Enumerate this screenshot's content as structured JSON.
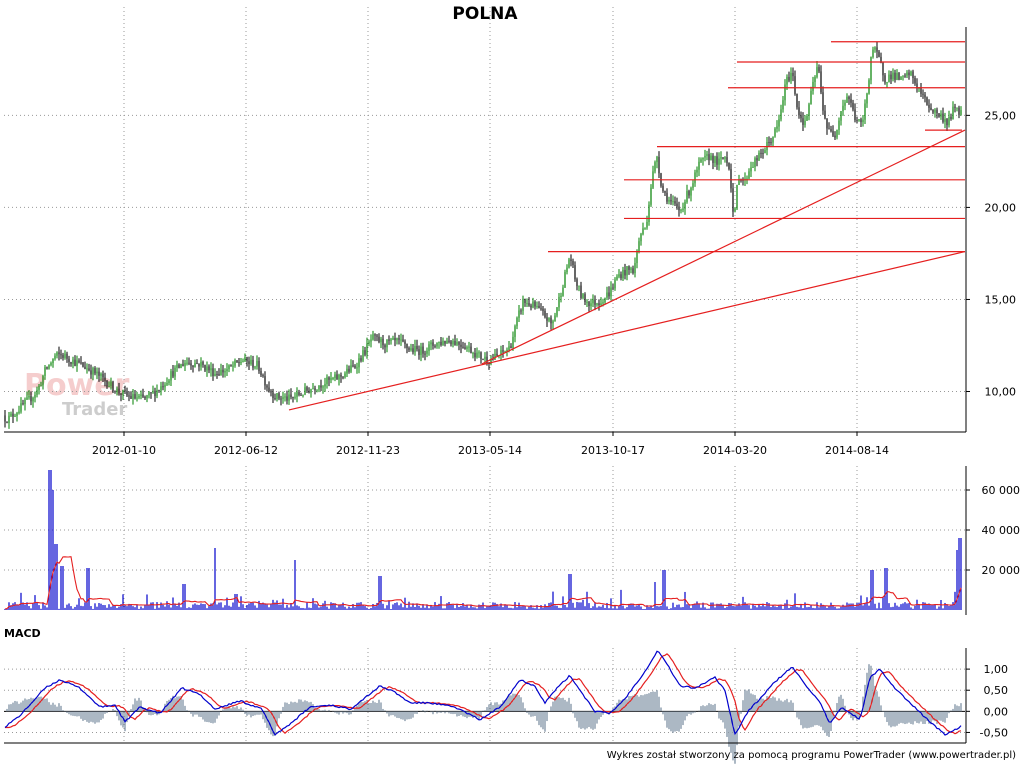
{
  "chart_data": [
    {
      "type": "candlestick",
      "title": "POLNA",
      "x_tick_labels": [
        "2012-01-10",
        "2012-06-12",
        "2012-11-23",
        "2013-05-14",
        "2013-10-17",
        "2014-03-20",
        "2014-08-14"
      ],
      "y_tick_labels": [
        "10,00",
        "15,00",
        "20,00",
        "25,00"
      ],
      "y_ticks": [
        10,
        15,
        20,
        25
      ],
      "ylim": [
        7.8,
        29.8
      ],
      "grid": true,
      "price_path": [
        [
          0,
          8.7
        ],
        [
          8,
          8.5
        ],
        [
          18,
          9.0
        ],
        [
          30,
          9.6
        ],
        [
          38,
          10.1
        ],
        [
          45,
          11.1
        ],
        [
          55,
          11.9
        ],
        [
          62,
          12.0
        ],
        [
          75,
          11.6
        ],
        [
          90,
          11.2
        ],
        [
          105,
          10.6
        ],
        [
          118,
          10.0
        ],
        [
          130,
          9.7
        ],
        [
          145,
          9.6
        ],
        [
          160,
          10.2
        ],
        [
          172,
          11.0
        ],
        [
          185,
          11.6
        ],
        [
          200,
          11.5
        ],
        [
          215,
          11.0
        ],
        [
          228,
          11.2
        ],
        [
          242,
          11.7
        ],
        [
          258,
          11.4
        ],
        [
          268,
          10.2
        ],
        [
          276,
          9.7
        ],
        [
          290,
          9.6
        ],
        [
          305,
          10.0
        ],
        [
          320,
          10.4
        ],
        [
          340,
          10.8
        ],
        [
          355,
          11.4
        ],
        [
          365,
          12.2
        ],
        [
          372,
          12.9
        ],
        [
          385,
          12.6
        ],
        [
          398,
          12.7
        ],
        [
          410,
          12.3
        ],
        [
          422,
          12.2
        ],
        [
          435,
          12.6
        ],
        [
          450,
          12.8
        ],
        [
          465,
          12.5
        ],
        [
          480,
          11.9
        ],
        [
          490,
          11.7
        ],
        [
          500,
          12.0
        ],
        [
          510,
          12.4
        ],
        [
          518,
          14.0
        ],
        [
          523,
          14.9
        ],
        [
          535,
          14.6
        ],
        [
          545,
          14.1
        ],
        [
          552,
          13.6
        ],
        [
          558,
          14.8
        ],
        [
          565,
          16.3
        ],
        [
          570,
          17.4
        ],
        [
          575,
          16.1
        ],
        [
          582,
          15.1
        ],
        [
          590,
          14.8
        ],
        [
          600,
          14.9
        ],
        [
          610,
          15.4
        ],
        [
          618,
          16.3
        ],
        [
          628,
          16.6
        ],
        [
          634,
          16.6
        ],
        [
          640,
          18.5
        ],
        [
          646,
          19.0
        ],
        [
          652,
          21.6
        ],
        [
          657,
          22.8
        ],
        [
          662,
          21.0
        ],
        [
          670,
          20.3
        ],
        [
          680,
          19.8
        ],
        [
          690,
          21.0
        ],
        [
          700,
          22.4
        ],
        [
          710,
          22.8
        ],
        [
          718,
          22.4
        ],
        [
          726,
          22.8
        ],
        [
          730,
          22.0
        ],
        [
          734,
          19.0
        ],
        [
          738,
          21.8
        ],
        [
          745,
          21.4
        ],
        [
          750,
          22.2
        ],
        [
          760,
          22.8
        ],
        [
          770,
          23.6
        ],
        [
          778,
          24.4
        ],
        [
          786,
          26.8
        ],
        [
          792,
          27.4
        ],
        [
          798,
          25.2
        ],
        [
          805,
          24.5
        ],
        [
          812,
          26.4
        ],
        [
          818,
          27.8
        ],
        [
          822,
          25.7
        ],
        [
          828,
          24.1
        ],
        [
          835,
          24.0
        ],
        [
          842,
          25.5
        ],
        [
          848,
          26.1
        ],
        [
          855,
          24.9
        ],
        [
          862,
          24.4
        ],
        [
          868,
          26.6
        ],
        [
          872,
          28.7
        ],
        [
          878,
          28.2
        ],
        [
          885,
          27.0
        ],
        [
          893,
          27.2
        ],
        [
          902,
          26.9
        ],
        [
          910,
          27.3
        ],
        [
          918,
          26.5
        ],
        [
          925,
          25.8
        ],
        [
          932,
          25.3
        ],
        [
          940,
          25.0
        ],
        [
          948,
          24.6
        ],
        [
          955,
          25.5
        ],
        [
          962,
          25.1
        ]
      ],
      "support_resistance_levels": [
        17.6,
        19.4,
        21.5,
        23.3,
        26.5,
        27.9,
        29.0
      ],
      "trendlines": [
        {
          "from": [
            "2012-07",
            9.0
          ],
          "to": [
            "2014-11",
            17.6
          ]
        },
        {
          "from": [
            "2013-05",
            11.5
          ],
          "to": [
            "2014-11",
            24.2
          ]
        }
      ]
    },
    {
      "type": "bar",
      "title": "",
      "y_tick_labels": [
        "20 000",
        "40 000",
        "60 000"
      ],
      "y_ticks": [
        20000,
        40000,
        60000
      ],
      "ylim": [
        0,
        72000
      ],
      "series": [
        {
          "values": "volume bars with a red moving average"
        }
      ]
    },
    {
      "type": "line",
      "title": "MACD",
      "y_tick_labels": [
        "-0,50",
        "0,00",
        "0,50",
        "1,00"
      ],
      "y_ticks": [
        -0.5,
        0,
        0.5,
        1
      ],
      "ylim": [
        -0.75,
        1.5
      ],
      "macd_path": [
        [
          0,
          -0.45
        ],
        [
          20,
          -0.1
        ],
        [
          45,
          0.55
        ],
        [
          60,
          0.75
        ],
        [
          80,
          0.55
        ],
        [
          100,
          0.1
        ],
        [
          115,
          0.15
        ],
        [
          125,
          -0.25
        ],
        [
          140,
          0.1
        ],
        [
          160,
          -0.05
        ],
        [
          182,
          0.55
        ],
        [
          200,
          0.4
        ],
        [
          215,
          0.05
        ],
        [
          240,
          0.25
        ],
        [
          262,
          0.05
        ],
        [
          275,
          -0.55
        ],
        [
          290,
          -0.3
        ],
        [
          310,
          0.1
        ],
        [
          330,
          0.15
        ],
        [
          350,
          0.05
        ],
        [
          380,
          0.6
        ],
        [
          395,
          0.45
        ],
        [
          410,
          0.2
        ],
        [
          430,
          0.2
        ],
        [
          455,
          0.1
        ],
        [
          480,
          -0.2
        ],
        [
          500,
          0.1
        ],
        [
          520,
          0.75
        ],
        [
          535,
          0.6
        ],
        [
          545,
          0.2
        ],
        [
          555,
          0.5
        ],
        [
          570,
          0.85
        ],
        [
          580,
          0.5
        ],
        [
          595,
          0.0
        ],
        [
          610,
          -0.05
        ],
        [
          625,
          0.3
        ],
        [
          645,
          0.95
        ],
        [
          658,
          1.45
        ],
        [
          670,
          1.0
        ],
        [
          680,
          0.6
        ],
        [
          695,
          0.55
        ],
        [
          715,
          0.8
        ],
        [
          725,
          0.5
        ],
        [
          735,
          -0.55
        ],
        [
          748,
          0.0
        ],
        [
          760,
          0.3
        ],
        [
          775,
          0.7
        ],
        [
          792,
          1.05
        ],
        [
          805,
          0.65
        ],
        [
          820,
          0.2
        ],
        [
          830,
          -0.3
        ],
        [
          842,
          0.1
        ],
        [
          860,
          -0.2
        ],
        [
          870,
          0.8
        ],
        [
          880,
          1.0
        ],
        [
          895,
          0.55
        ],
        [
          912,
          0.15
        ],
        [
          930,
          -0.25
        ],
        [
          945,
          -0.55
        ],
        [
          958,
          -0.4
        ],
        [
          962,
          -0.3
        ]
      ]
    }
  ],
  "footer": {
    "text": "Wykres został stworzony za pomocą programu PowerTrader (www.powertrader.pl)"
  },
  "watermark": {
    "line1": "Power",
    "line2": "Trader"
  },
  "colors": {
    "up_candle": "#008000",
    "down_candle": "#000000",
    "levels": "#e51f1f",
    "volume": "#0000cc",
    "volume_ma": "#e51f1f",
    "macd": "#0000cc",
    "signal": "#e51f1f",
    "histogram": "#8899aa"
  }
}
